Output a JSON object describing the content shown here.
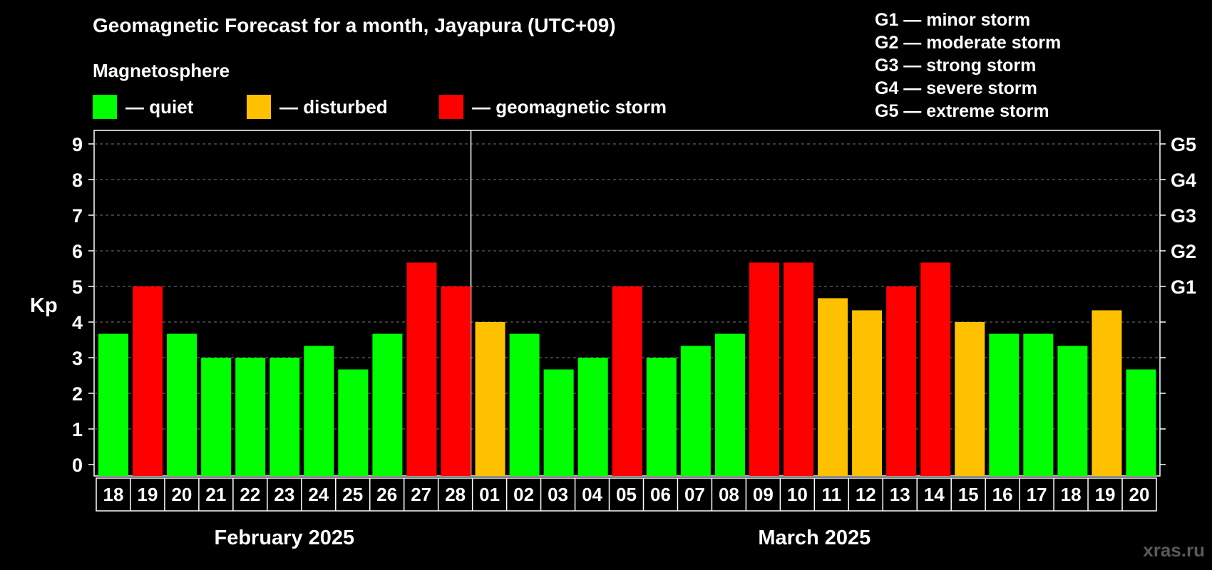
{
  "title": "Geomagnetic Forecast for a month, Jayapura (UTC+09)",
  "magnetosphere_label": "Magnetosphere",
  "legend": [
    {
      "label": "— quiet",
      "color": "#00ff00"
    },
    {
      "label": "— disturbed",
      "color": "#ffc000"
    },
    {
      "label": "— geomagnetic storm",
      "color": "#ff0000"
    }
  ],
  "g_scale": [
    "G1 — minor storm",
    "G2 — moderate storm",
    "G3 — strong storm",
    "G4 — severe storm",
    "G5 — extreme storm"
  ],
  "watermark": "xras.ru",
  "chart_data": {
    "type": "bar",
    "ylabel": "Kp",
    "ylim": [
      0,
      9
    ],
    "yticks": [
      "0",
      "1",
      "2",
      "3",
      "4",
      "5",
      "6",
      "7",
      "8",
      "9"
    ],
    "right_ticks": [
      {
        "kp": 5,
        "label": "G1"
      },
      {
        "kp": 6,
        "label": "G2"
      },
      {
        "kp": 7,
        "label": "G3"
      },
      {
        "kp": 8,
        "label": "G4"
      },
      {
        "kp": 9,
        "label": "G5"
      }
    ],
    "grid": true,
    "months": [
      {
        "label": "February 2025",
        "count": 11
      },
      {
        "label": "March 2025",
        "count": 20
      }
    ],
    "categories": [
      "18",
      "19",
      "20",
      "21",
      "22",
      "23",
      "24",
      "25",
      "26",
      "27",
      "28",
      "01",
      "02",
      "03",
      "04",
      "05",
      "06",
      "07",
      "08",
      "09",
      "10",
      "11",
      "12",
      "13",
      "14",
      "15",
      "16",
      "17",
      "18",
      "19",
      "20"
    ],
    "values": [
      3.67,
      5,
      3.67,
      3,
      3,
      3,
      3.33,
      2.67,
      3.67,
      5.67,
      5,
      4,
      3.67,
      2.67,
      3,
      5,
      3,
      3.33,
      3.67,
      5.67,
      5.67,
      4.67,
      4.33,
      5,
      5.67,
      4,
      3.67,
      3.67,
      3.33,
      4.33,
      2.67
    ],
    "status": [
      "quiet",
      "storm",
      "quiet",
      "quiet",
      "quiet",
      "quiet",
      "quiet",
      "quiet",
      "quiet",
      "storm",
      "storm",
      "disturbed",
      "quiet",
      "quiet",
      "quiet",
      "storm",
      "quiet",
      "quiet",
      "quiet",
      "storm",
      "storm",
      "disturbed",
      "disturbed",
      "storm",
      "storm",
      "disturbed",
      "quiet",
      "quiet",
      "quiet",
      "disturbed",
      "quiet"
    ],
    "status_colors": {
      "quiet": "#00ff00",
      "disturbed": "#ffc000",
      "storm": "#ff0000"
    }
  }
}
